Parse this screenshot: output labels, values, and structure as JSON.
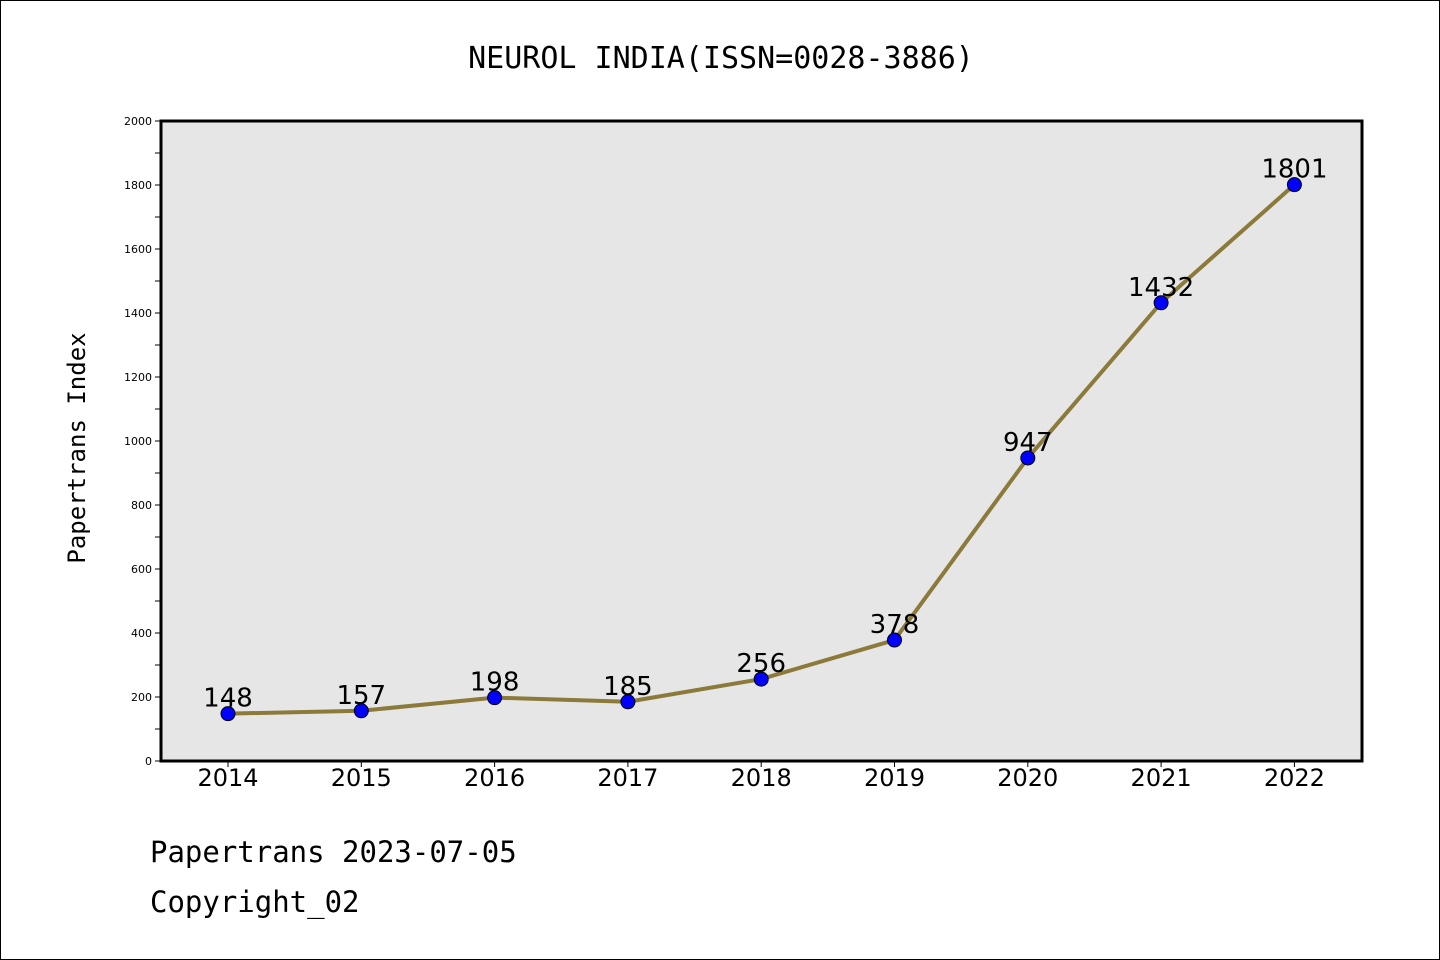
{
  "chart_data": {
    "type": "line",
    "title": "NEUROL INDIA(ISSN=0028-3886)",
    "xlabel": "",
    "ylabel": "Papertrans Index",
    "categories": [
      "2014",
      "2015",
      "2016",
      "2017",
      "2018",
      "2019",
      "2020",
      "2021",
      "2022"
    ],
    "series": [
      {
        "values": [
          148,
          157,
          198,
          185,
          256,
          378,
          947,
          1432,
          1801
        ]
      }
    ],
    "ylim": [
      0,
      2000
    ],
    "yticks": [
      0,
      200,
      400,
      600,
      800,
      1000,
      1200,
      1400,
      1600,
      1800,
      2000
    ],
    "grid": false,
    "data_labels": true,
    "colors": {
      "line": "#8c7a3a",
      "marker": "#0000ff",
      "plot_background": "#e6e6e6"
    }
  },
  "footer": {
    "line1": "Papertrans 2023-07-05",
    "line2": "Copyright_02"
  }
}
